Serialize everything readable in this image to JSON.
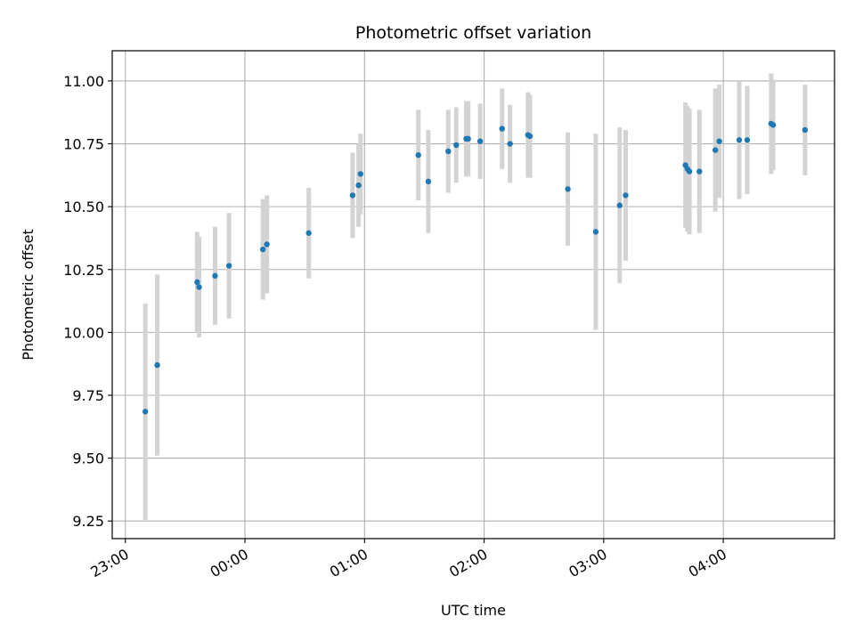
{
  "chart_data": {
    "type": "scatter",
    "title": "Photometric offset variation",
    "xlabel": "UTC time",
    "ylabel": "Photometric offset",
    "x_axis_kind": "time",
    "xlim_hours": [
      -1.11,
      4.93
    ],
    "ylim": [
      9.18,
      11.12
    ],
    "grid": true,
    "x_ticks": [
      {
        "hour": -1,
        "label": "23:00"
      },
      {
        "hour": 0,
        "label": "00:00"
      },
      {
        "hour": 1,
        "label": "01:00"
      },
      {
        "hour": 2,
        "label": "02:00"
      },
      {
        "hour": 3,
        "label": "03:00"
      },
      {
        "hour": 4,
        "label": "04:00"
      }
    ],
    "y_ticks": [
      {
        "value": 9.25,
        "label": "9.25"
      },
      {
        "value": 9.5,
        "label": "9.50"
      },
      {
        "value": 9.75,
        "label": "9.75"
      },
      {
        "value": 10.0,
        "label": "10.00"
      },
      {
        "value": 10.25,
        "label": "10.25"
      },
      {
        "value": 10.5,
        "label": "10.50"
      },
      {
        "value": 10.75,
        "label": "10.75"
      },
      {
        "value": 11.0,
        "label": "11.00"
      }
    ],
    "marker_color": "#1f77b4",
    "errorbar_color": "#d3d3d3",
    "points": [
      {
        "time": "23:10",
        "y": 9.685,
        "yerr": 0.43
      },
      {
        "time": "23:16",
        "y": 9.87,
        "yerr": 0.36
      },
      {
        "time": "23:36",
        "y": 10.2,
        "yerr": 0.2
      },
      {
        "time": "23:37",
        "y": 10.18,
        "yerr": 0.2
      },
      {
        "time": "23:45",
        "y": 10.225,
        "yerr": 0.195
      },
      {
        "time": "23:52",
        "y": 10.265,
        "yerr": 0.21
      },
      {
        "time": "00:09",
        "y": 10.33,
        "yerr": 0.2
      },
      {
        "time": "00:11",
        "y": 10.35,
        "yerr": 0.195
      },
      {
        "time": "00:32",
        "y": 10.395,
        "yerr": 0.18
      },
      {
        "time": "00:54",
        "y": 10.545,
        "yerr": 0.17
      },
      {
        "time": "00:57",
        "y": 10.585,
        "yerr": 0.165
      },
      {
        "time": "00:58",
        "y": 10.63,
        "yerr": 0.16
      },
      {
        "time": "01:27",
        "y": 10.705,
        "yerr": 0.18
      },
      {
        "time": "01:32",
        "y": 10.6,
        "yerr": 0.205
      },
      {
        "time": "01:42",
        "y": 10.72,
        "yerr": 0.165
      },
      {
        "time": "01:46",
        "y": 10.745,
        "yerr": 0.15
      },
      {
        "time": "01:51",
        "y": 10.77,
        "yerr": 0.15
      },
      {
        "time": "01:52",
        "y": 10.77,
        "yerr": 0.15
      },
      {
        "time": "01:58",
        "y": 10.76,
        "yerr": 0.15
      },
      {
        "time": "02:09",
        "y": 10.81,
        "yerr": 0.16
      },
      {
        "time": "02:13",
        "y": 10.75,
        "yerr": 0.155
      },
      {
        "time": "02:22",
        "y": 10.785,
        "yerr": 0.17
      },
      {
        "time": "02:23",
        "y": 10.78,
        "yerr": 0.165
      },
      {
        "time": "02:42",
        "y": 10.57,
        "yerr": 0.225
      },
      {
        "time": "02:56",
        "y": 10.4,
        "yerr": 0.39
      },
      {
        "time": "03:08",
        "y": 10.505,
        "yerr": 0.31
      },
      {
        "time": "03:11",
        "y": 10.545,
        "yerr": 0.26
      },
      {
        "time": "03:41",
        "y": 10.665,
        "yerr": 0.25
      },
      {
        "time": "03:42",
        "y": 10.65,
        "yerr": 0.25
      },
      {
        "time": "03:43",
        "y": 10.64,
        "yerr": 0.25
      },
      {
        "time": "03:48",
        "y": 10.64,
        "yerr": 0.245
      },
      {
        "time": "03:56",
        "y": 10.725,
        "yerr": 0.245
      },
      {
        "time": "03:58",
        "y": 10.76,
        "yerr": 0.225
      },
      {
        "time": "04:08",
        "y": 10.765,
        "yerr": 0.235
      },
      {
        "time": "04:12",
        "y": 10.765,
        "yerr": 0.215
      },
      {
        "time": "04:24",
        "y": 10.83,
        "yerr": 0.2
      },
      {
        "time": "04:25",
        "y": 10.825,
        "yerr": 0.18
      },
      {
        "time": "04:41",
        "y": 10.805,
        "yerr": 0.18
      }
    ]
  }
}
